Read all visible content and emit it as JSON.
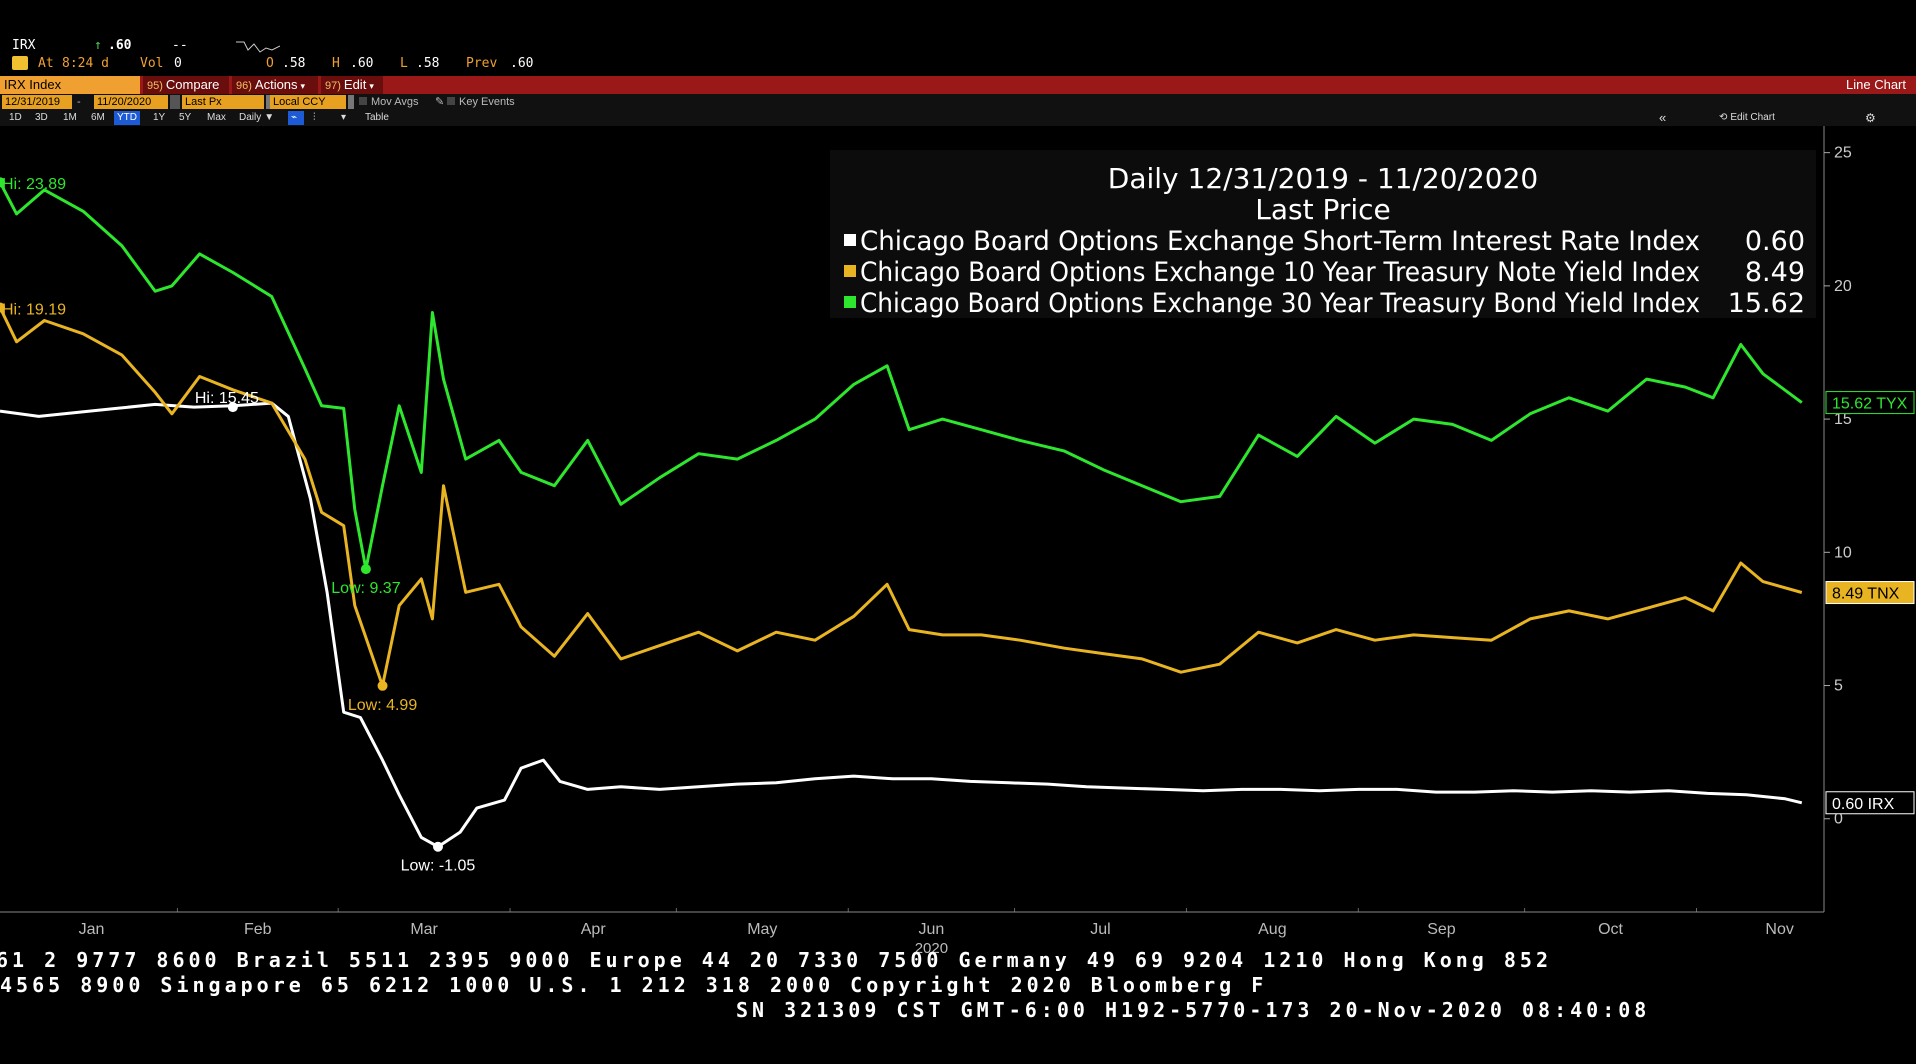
{
  "quote": {
    "ticker": "IRX",
    "arrow": "↑",
    "last": ".60",
    "change": "--",
    "at_label": "At",
    "time": "8:24 d",
    "vol_label": "Vol",
    "vol": "0",
    "open_label": "O",
    "open": ".58",
    "high_label": "H",
    "high": ".60",
    "low_label": "L",
    "low": ".58",
    "prev_label": "Prev",
    "prev": ".60"
  },
  "toolbar": {
    "security": "IRX Index",
    "compare_num": "95)",
    "compare": "Compare",
    "actions_num": "96)",
    "actions": "Actions",
    "edit_num": "97)",
    "edit": "Edit",
    "view_name": "Line Chart"
  },
  "options": {
    "start_date": "12/31/2019",
    "end_date": "11/20/2020",
    "field": "Last Px",
    "currency": "Local CCY",
    "mov_avgs": "Mov Avgs",
    "key_events": "Key Events"
  },
  "timeframes": [
    "1D",
    "3D",
    "1M",
    "6M",
    "YTD",
    "1Y",
    "5Y",
    "Max"
  ],
  "active_timeframe": "YTD",
  "period": "Daily",
  "table_label": "Table",
  "collapse_icon": "«",
  "edit_chart_label": "Edit Chart",
  "legend": {
    "line1": "Daily 12/31/2019 - 11/20/2020",
    "line2": "Last Price",
    "entries": [
      {
        "name": "Chicago Board Options Exchange Short-Term Interest Rate Index",
        "value": "0.60",
        "color": "#ffffff"
      },
      {
        "name": "Chicago Board Options Exchange 10 Year Treasury Note Yield Index",
        "value": "8.49",
        "color": "#e8b422"
      },
      {
        "name": "Chicago Board Options Exchange 30 Year Treasury Bond Yield Index",
        "value": "15.62",
        "color": "#2ee62e"
      }
    ]
  },
  "chart_data": {
    "type": "line",
    "x_months": [
      "Jan",
      "Feb",
      "Mar",
      "Apr",
      "May",
      "Jun",
      "Jul",
      "Aug",
      "Sep",
      "Oct",
      "Nov"
    ],
    "x_year": "2020",
    "y_ticks": [
      0,
      5,
      10,
      15,
      20,
      25
    ],
    "ylim": [
      -3.5,
      26
    ],
    "series": [
      {
        "name": "IRX",
        "color": "#ffffff",
        "last_label": "0.60  IRX",
        "x": [
          "2019-12-31",
          "2020-01-07",
          "2020-01-14",
          "2020-01-21",
          "2020-01-28",
          "2020-02-04",
          "2020-02-11",
          "2020-02-18",
          "2020-02-21",
          "2020-02-25",
          "2020-02-28",
          "2020-03-02",
          "2020-03-05",
          "2020-03-09",
          "2020-03-12",
          "2020-03-16",
          "2020-03-19",
          "2020-03-23",
          "2020-03-26",
          "2020-03-31",
          "2020-04-03",
          "2020-04-07",
          "2020-04-10",
          "2020-04-15",
          "2020-04-21",
          "2020-04-28",
          "2020-05-05",
          "2020-05-12",
          "2020-05-19",
          "2020-05-26",
          "2020-06-02",
          "2020-06-09",
          "2020-06-16",
          "2020-06-23",
          "2020-06-30",
          "2020-07-07",
          "2020-07-14",
          "2020-07-21",
          "2020-07-28",
          "2020-08-04",
          "2020-08-11",
          "2020-08-18",
          "2020-08-25",
          "2020-09-01",
          "2020-09-08",
          "2020-09-15",
          "2020-09-22",
          "2020-09-29",
          "2020-10-06",
          "2020-10-13",
          "2020-10-20",
          "2020-10-27",
          "2020-11-03",
          "2020-11-10",
          "2020-11-17",
          "2020-11-20"
        ],
        "y": [
          15.3,
          15.1,
          15.25,
          15.4,
          15.55,
          15.45,
          15.5,
          15.6,
          15.1,
          12.0,
          8.5,
          4.0,
          3.8,
          2.2,
          0.9,
          -0.7,
          -1.05,
          -0.5,
          0.4,
          0.7,
          1.9,
          2.2,
          1.4,
          1.1,
          1.2,
          1.1,
          1.2,
          1.3,
          1.35,
          1.5,
          1.6,
          1.5,
          1.5,
          1.4,
          1.35,
          1.3,
          1.2,
          1.15,
          1.1,
          1.05,
          1.1,
          1.1,
          1.05,
          1.1,
          1.1,
          1.0,
          1.0,
          1.05,
          1.0,
          1.05,
          1.0,
          1.05,
          0.95,
          0.9,
          0.75,
          0.6
        ]
      },
      {
        "name": "TNX",
        "color": "#e8b422",
        "last_label": "8.49  TNX",
        "x": [
          "2019-12-31",
          "2020-01-03",
          "2020-01-08",
          "2020-01-15",
          "2020-01-22",
          "2020-01-28",
          "2020-01-31",
          "2020-02-05",
          "2020-02-11",
          "2020-02-18",
          "2020-02-24",
          "2020-02-27",
          "2020-03-02",
          "2020-03-04",
          "2020-03-06",
          "2020-03-09",
          "2020-03-12",
          "2020-03-16",
          "2020-03-18",
          "2020-03-20",
          "2020-03-24",
          "2020-03-30",
          "2020-04-03",
          "2020-04-09",
          "2020-04-15",
          "2020-04-21",
          "2020-04-28",
          "2020-05-05",
          "2020-05-12",
          "2020-05-19",
          "2020-05-26",
          "2020-06-02",
          "2020-06-08",
          "2020-06-12",
          "2020-06-18",
          "2020-06-25",
          "2020-07-02",
          "2020-07-10",
          "2020-07-17",
          "2020-07-24",
          "2020-07-31",
          "2020-08-07",
          "2020-08-14",
          "2020-08-21",
          "2020-08-28",
          "2020-09-04",
          "2020-09-11",
          "2020-09-18",
          "2020-09-25",
          "2020-10-02",
          "2020-10-09",
          "2020-10-16",
          "2020-10-23",
          "2020-10-30",
          "2020-11-04",
          "2020-11-09",
          "2020-11-13",
          "2020-11-20"
        ],
        "y": [
          19.19,
          17.9,
          18.7,
          18.2,
          17.4,
          16.0,
          15.2,
          16.6,
          16.1,
          15.6,
          13.5,
          11.5,
          11.0,
          8.0,
          6.8,
          4.99,
          8.0,
          9.0,
          7.5,
          12.5,
          8.5,
          8.8,
          7.2,
          6.1,
          7.7,
          6.0,
          6.5,
          7.0,
          6.3,
          7.0,
          6.7,
          7.6,
          8.8,
          7.1,
          6.9,
          6.9,
          6.7,
          6.4,
          6.2,
          6.0,
          5.5,
          5.8,
          7.0,
          6.6,
          7.1,
          6.7,
          6.9,
          6.8,
          6.7,
          7.5,
          7.8,
          7.5,
          7.9,
          8.3,
          7.8,
          9.6,
          8.9,
          8.49
        ]
      },
      {
        "name": "TYX",
        "color": "#2ee62e",
        "last_label": "15.62 TYX",
        "x": [
          "2019-12-31",
          "2020-01-03",
          "2020-01-08",
          "2020-01-15",
          "2020-01-22",
          "2020-01-28",
          "2020-01-31",
          "2020-02-05",
          "2020-02-11",
          "2020-02-18",
          "2020-02-24",
          "2020-02-27",
          "2020-03-02",
          "2020-03-04",
          "2020-03-06",
          "2020-03-09",
          "2020-03-12",
          "2020-03-16",
          "2020-03-18",
          "2020-03-20",
          "2020-03-24",
          "2020-03-30",
          "2020-04-03",
          "2020-04-09",
          "2020-04-15",
          "2020-04-21",
          "2020-04-28",
          "2020-05-05",
          "2020-05-12",
          "2020-05-19",
          "2020-05-26",
          "2020-06-02",
          "2020-06-08",
          "2020-06-12",
          "2020-06-18",
          "2020-06-25",
          "2020-07-02",
          "2020-07-10",
          "2020-07-17",
          "2020-07-24",
          "2020-07-31",
          "2020-08-07",
          "2020-08-14",
          "2020-08-21",
          "2020-08-28",
          "2020-09-04",
          "2020-09-11",
          "2020-09-18",
          "2020-09-25",
          "2020-10-02",
          "2020-10-09",
          "2020-10-16",
          "2020-10-23",
          "2020-10-30",
          "2020-11-04",
          "2020-11-09",
          "2020-11-13",
          "2020-11-20"
        ],
        "y": [
          23.89,
          22.7,
          23.6,
          22.8,
          21.5,
          19.8,
          20.0,
          21.2,
          20.5,
          19.6,
          16.9,
          15.5,
          15.4,
          11.6,
          9.37,
          12.5,
          15.5,
          13.0,
          19.0,
          16.5,
          13.5,
          14.2,
          13.0,
          12.5,
          14.2,
          11.8,
          12.8,
          13.7,
          13.5,
          14.2,
          15.0,
          16.3,
          17.0,
          14.6,
          15.0,
          14.6,
          14.2,
          13.8,
          13.1,
          12.5,
          11.9,
          12.1,
          14.4,
          13.6,
          15.1,
          14.1,
          15.0,
          14.8,
          14.2,
          15.2,
          15.8,
          15.3,
          16.5,
          16.2,
          15.8,
          17.8,
          16.7,
          15.62
        ]
      }
    ],
    "annotations": [
      {
        "text": "Hi: 23.89",
        "series": "TYX",
        "date": "2019-12-31",
        "value": 23.89
      },
      {
        "text": "Hi: 19.19",
        "series": "TNX",
        "date": "2019-12-31",
        "value": 19.19
      },
      {
        "text": "Hi: 15.45",
        "series": "IRX",
        "date": "2020-02-11",
        "value": 15.45
      },
      {
        "text": "Low: 9.37",
        "series": "TYX",
        "date": "2020-03-06",
        "value": 9.37
      },
      {
        "text": "Low: 4.99",
        "series": "TNX",
        "date": "2020-03-09",
        "value": 4.99
      },
      {
        "text": "Low: -1.05",
        "series": "IRX",
        "date": "2020-03-19",
        "value": -1.05
      }
    ]
  },
  "footer": {
    "line1": "61 2 9777 8600 Brazil 5511 2395 9000 Europe 44 20 7330 7500 Germany 49 69 9204 1210 Hong Kong 852",
    "line2": "4565 8900      Singapore 65 6212 1000      U.S. 1 212 318 2000         Copyright 2020 Bloomberg F",
    "line3": "SN 321309 CST  GMT-6:00 H192-5770-173 20-Nov-2020 08:40:08"
  }
}
